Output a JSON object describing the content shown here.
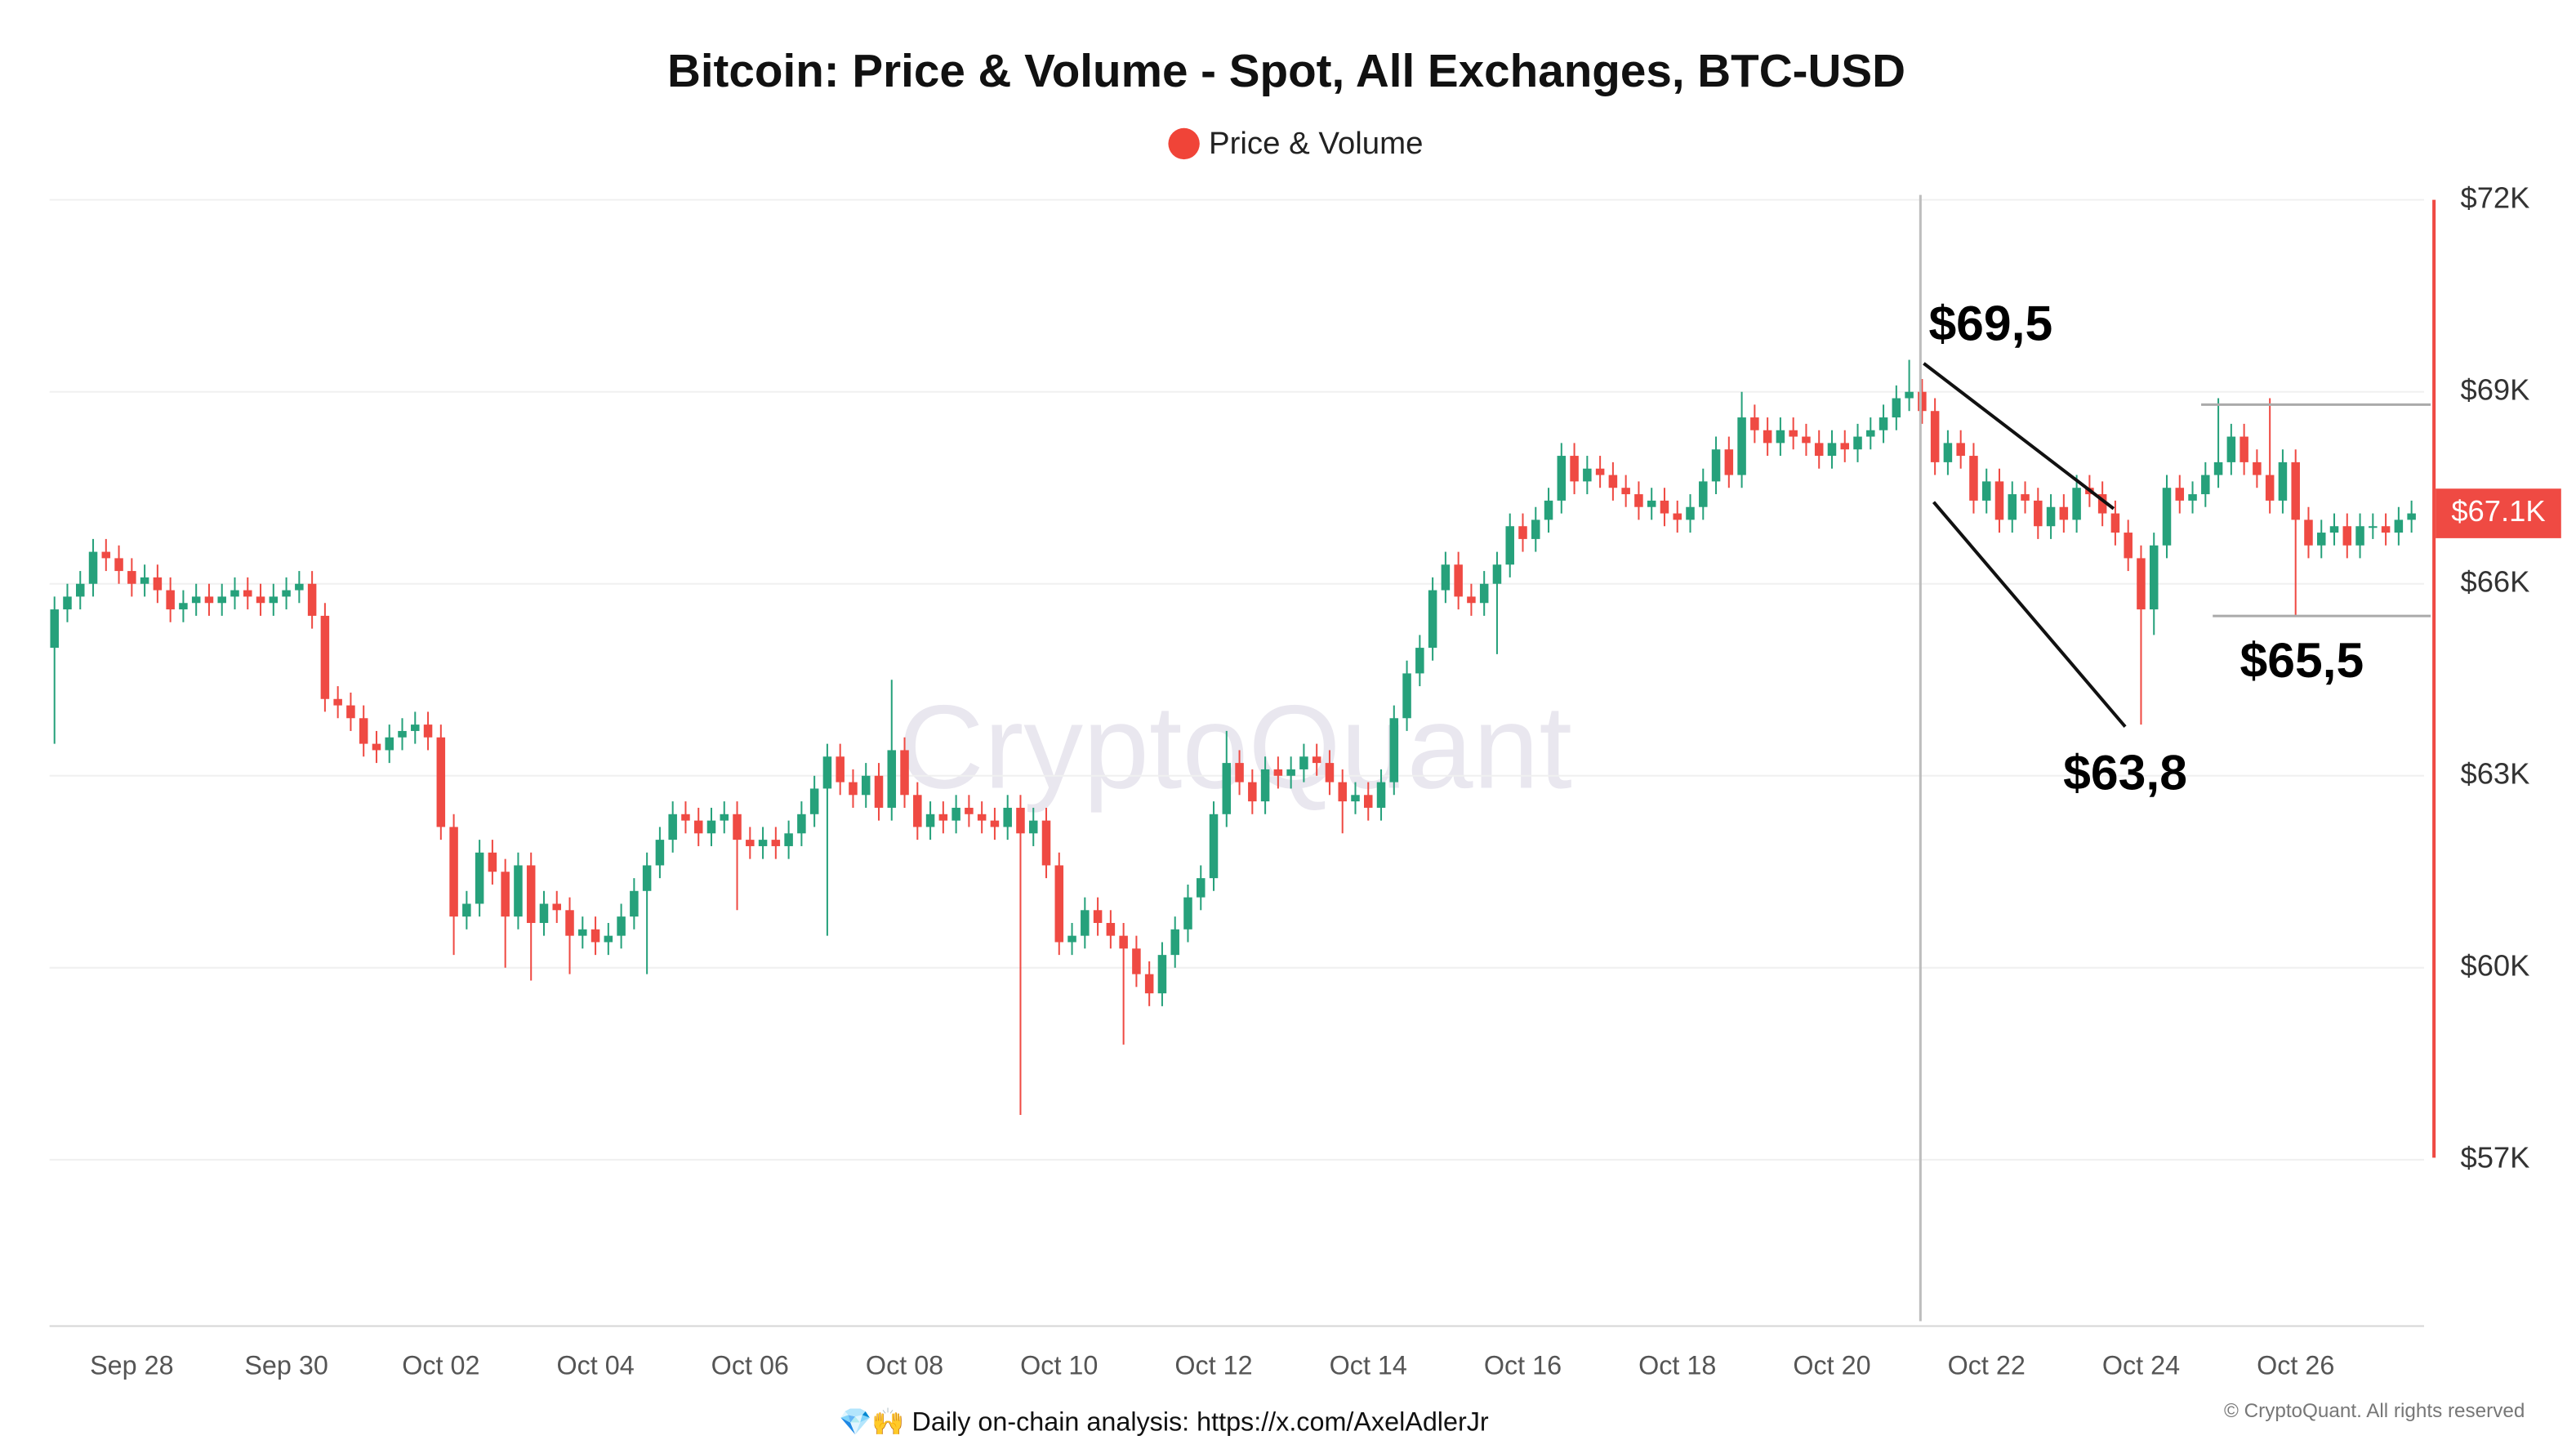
{
  "chart_data": {
    "type": "candlestick",
    "title": "Bitcoin: Price & Volume - Spot, All Exchanges, BTC-USD",
    "legend_position": "top",
    "watermark": "CryptoQuant",
    "footer": "💎🙌 Daily on-chain analysis: https://x.com/AxelAdlerJr",
    "copyright": "© CryptoQuant. All rights reserved",
    "annotations": [
      "$69,5",
      "$63,8",
      "$65,5"
    ],
    "last_price": {
      "value": 67.1,
      "label": "$67.1K"
    },
    "up_color": "#26a17b",
    "down_color": "#ef4a43",
    "grid": true,
    "ylim": [
      54.4,
      72
    ],
    "yticks": [
      {
        "value": 57,
        "label": "$57K"
      },
      {
        "value": 60,
        "label": "$60K"
      },
      {
        "value": 63,
        "label": "$63K"
      },
      {
        "value": 66,
        "label": "$66K"
      },
      {
        "value": 69,
        "label": "$69K"
      },
      {
        "value": 72,
        "label": "$72K"
      }
    ],
    "categories": [
      null,
      null,
      null,
      null,
      null,
      null,
      "Sep 28",
      null,
      null,
      null,
      null,
      null,
      null,
      null,
      null,
      null,
      null,
      null,
      "Sep 30",
      null,
      null,
      null,
      null,
      null,
      null,
      null,
      null,
      null,
      null,
      null,
      "Oct 02",
      null,
      null,
      null,
      null,
      null,
      null,
      null,
      null,
      null,
      null,
      null,
      "Oct 04",
      null,
      null,
      null,
      null,
      null,
      null,
      null,
      null,
      null,
      null,
      null,
      "Oct 06",
      null,
      null,
      null,
      null,
      null,
      null,
      null,
      null,
      null,
      null,
      null,
      "Oct 08",
      null,
      null,
      null,
      null,
      null,
      null,
      null,
      null,
      null,
      null,
      null,
      "Oct 10",
      null,
      null,
      null,
      null,
      null,
      null,
      null,
      null,
      null,
      null,
      null,
      "Oct 12",
      null,
      null,
      null,
      null,
      null,
      null,
      null,
      null,
      null,
      null,
      null,
      "Oct 14",
      null,
      null,
      null,
      null,
      null,
      null,
      null,
      null,
      null,
      null,
      null,
      "Oct 16",
      null,
      null,
      null,
      null,
      null,
      null,
      null,
      null,
      null,
      null,
      null,
      "Oct 18",
      null,
      null,
      null,
      null,
      null,
      null,
      null,
      null,
      null,
      null,
      null,
      "Oct 20",
      null,
      null,
      null,
      null,
      null,
      null,
      null,
      null,
      null,
      null,
      null,
      "Oct 22",
      null,
      null,
      null,
      null,
      null,
      null,
      null,
      null,
      null,
      null,
      null,
      "Oct 24",
      null,
      null,
      null,
      null,
      null,
      null,
      null,
      null,
      null,
      null,
      null,
      "Oct 26",
      null,
      null,
      null,
      null,
      null,
      null,
      null,
      null,
      null
    ],
    "series": [
      {
        "name": "Price & Volume",
        "color": "#f04438",
        "open": [
          65.0,
          65.6,
          65.8,
          66.0,
          66.5,
          66.4,
          66.2,
          66.0,
          66.1,
          65.9,
          65.6,
          65.7,
          65.8,
          65.7,
          65.8,
          65.9,
          65.8,
          65.7,
          65.8,
          65.9,
          66.0,
          65.5,
          64.2,
          64.1,
          63.9,
          63.5,
          63.4,
          63.6,
          63.7,
          63.8,
          63.6,
          62.2,
          60.8,
          61.0,
          61.8,
          61.5,
          60.8,
          61.6,
          60.7,
          61.0,
          60.9,
          60.5,
          60.6,
          60.4,
          60.5,
          60.8,
          61.2,
          61.6,
          62.0,
          62.4,
          62.3,
          62.1,
          62.3,
          62.4,
          62.0,
          61.9,
          62.0,
          61.9,
          62.1,
          62.4,
          62.8,
          63.3,
          62.9,
          62.7,
          63.0,
          62.5,
          63.4,
          62.7,
          62.2,
          62.4,
          62.3,
          62.5,
          62.4,
          62.3,
          62.2,
          62.5,
          62.1,
          62.3,
          61.6,
          60.4,
          60.5,
          60.9,
          60.7,
          60.5,
          60.3,
          59.9,
          59.6,
          60.2,
          60.6,
          61.1,
          61.4,
          62.4,
          63.2,
          62.9,
          62.6,
          63.1,
          63.0,
          63.1,
          63.3,
          63.2,
          62.9,
          62.6,
          62.7,
          62.5,
          62.9,
          63.9,
          64.6,
          65.0,
          65.9,
          66.3,
          65.8,
          65.7,
          66.0,
          66.3,
          66.9,
          66.7,
          67.0,
          67.3,
          68.0,
          67.6,
          67.8,
          67.7,
          67.5,
          67.4,
          67.2,
          67.3,
          67.1,
          67.0,
          67.2,
          67.6,
          68.1,
          67.7,
          68.6,
          68.4,
          68.2,
          68.4,
          68.3,
          68.2,
          68.0,
          68.2,
          68.1,
          68.3,
          68.4,
          68.6,
          68.9,
          69.0,
          68.7,
          67.9,
          68.2,
          68.0,
          67.3,
          67.6,
          67.0,
          67.4,
          67.3,
          66.9,
          67.2,
          67.0,
          67.5,
          67.4,
          67.1,
          66.8,
          66.4,
          65.6,
          66.6,
          67.5,
          67.3,
          67.4,
          67.7,
          67.9,
          68.3,
          67.9,
          67.7,
          67.3,
          67.9,
          67.0,
          66.6,
          66.8,
          66.9,
          66.6,
          66.9,
          66.9,
          66.8,
          67.0
        ],
        "high": [
          65.8,
          66.0,
          66.2,
          66.7,
          66.7,
          66.6,
          66.4,
          66.3,
          66.3,
          66.1,
          65.9,
          66.0,
          66.0,
          66.0,
          66.1,
          66.1,
          66.0,
          66.0,
          66.1,
          66.2,
          66.2,
          65.7,
          64.4,
          64.3,
          64.1,
          63.7,
          63.8,
          63.9,
          64.0,
          64.0,
          63.8,
          62.4,
          61.2,
          62.0,
          62.0,
          61.7,
          61.8,
          61.8,
          61.2,
          61.2,
          61.1,
          60.8,
          60.8,
          60.7,
          61.0,
          61.4,
          61.8,
          62.2,
          62.6,
          62.6,
          62.5,
          62.5,
          62.6,
          62.6,
          62.2,
          62.2,
          62.2,
          62.3,
          62.6,
          63.0,
          63.5,
          63.5,
          63.1,
          63.2,
          63.2,
          64.5,
          63.6,
          62.9,
          62.6,
          62.6,
          62.7,
          62.7,
          62.6,
          62.5,
          62.7,
          62.7,
          62.5,
          62.5,
          61.8,
          60.7,
          61.1,
          61.1,
          60.9,
          60.7,
          60.5,
          60.1,
          60.4,
          60.8,
          61.3,
          61.6,
          62.6,
          63.7,
          63.4,
          63.1,
          63.3,
          63.3,
          63.3,
          63.5,
          63.5,
          63.4,
          63.1,
          62.9,
          62.9,
          63.1,
          64.1,
          64.8,
          65.2,
          66.1,
          66.5,
          66.5,
          66.0,
          66.2,
          66.5,
          67.1,
          67.1,
          67.2,
          67.5,
          68.2,
          68.2,
          68.0,
          68.0,
          67.9,
          67.7,
          67.6,
          67.5,
          67.5,
          67.3,
          67.4,
          67.8,
          68.3,
          68.3,
          69.0,
          68.8,
          68.6,
          68.6,
          68.6,
          68.5,
          68.4,
          68.4,
          68.4,
          68.5,
          68.6,
          68.8,
          69.1,
          69.5,
          69.2,
          68.9,
          68.4,
          68.4,
          68.2,
          67.8,
          67.8,
          67.6,
          67.6,
          67.5,
          67.4,
          67.4,
          67.7,
          67.7,
          67.6,
          67.3,
          67.0,
          66.6,
          66.8,
          67.7,
          67.7,
          67.6,
          67.9,
          68.9,
          68.5,
          68.5,
          68.1,
          68.9,
          68.1,
          68.1,
          67.2,
          67.0,
          67.1,
          67.1,
          67.1,
          67.1,
          67.1,
          67.2,
          67.3
        ],
        "low": [
          63.5,
          65.4,
          65.6,
          65.8,
          66.2,
          66.0,
          65.8,
          65.8,
          65.7,
          65.4,
          65.4,
          65.5,
          65.5,
          65.5,
          65.6,
          65.6,
          65.5,
          65.5,
          65.6,
          65.7,
          65.3,
          64.0,
          63.9,
          63.7,
          63.3,
          63.2,
          63.2,
          63.4,
          63.5,
          63.4,
          62.0,
          60.2,
          60.6,
          60.8,
          61.3,
          60.0,
          60.6,
          59.8,
          60.5,
          60.7,
          59.9,
          60.3,
          60.2,
          60.2,
          60.3,
          60.6,
          59.9,
          61.4,
          61.8,
          62.1,
          61.9,
          61.9,
          62.1,
          60.9,
          61.7,
          61.7,
          61.7,
          61.7,
          61.9,
          62.2,
          60.5,
          62.7,
          62.5,
          62.5,
          62.3,
          62.3,
          62.5,
          62.0,
          62.0,
          62.1,
          62.1,
          62.2,
          62.1,
          62.0,
          62.0,
          57.7,
          61.9,
          61.4,
          60.2,
          60.2,
          60.3,
          60.5,
          60.3,
          58.8,
          59.7,
          59.4,
          59.4,
          60.0,
          60.4,
          60.9,
          61.2,
          62.2,
          62.7,
          62.4,
          62.4,
          62.8,
          62.8,
          62.9,
          63.0,
          62.7,
          62.1,
          62.4,
          62.3,
          62.3,
          62.7,
          63.7,
          64.4,
          64.8,
          65.7,
          65.6,
          65.5,
          65.5,
          64.9,
          66.1,
          66.5,
          66.5,
          66.8,
          67.1,
          67.4,
          67.4,
          67.5,
          67.3,
          67.2,
          67.0,
          67.0,
          66.9,
          66.8,
          66.8,
          67.0,
          67.4,
          67.5,
          67.5,
          68.2,
          68.0,
          68.0,
          68.1,
          68.0,
          67.8,
          67.8,
          67.9,
          67.9,
          68.1,
          68.2,
          68.4,
          68.7,
          68.5,
          67.7,
          67.7,
          67.8,
          67.1,
          67.1,
          66.8,
          66.8,
          67.1,
          66.7,
          66.7,
          66.8,
          66.8,
          67.2,
          66.9,
          66.6,
          66.2,
          63.8,
          65.2,
          66.4,
          67.1,
          67.1,
          67.2,
          67.5,
          67.7,
          67.7,
          67.5,
          67.1,
          67.1,
          65.5,
          66.4,
          66.4,
          66.6,
          66.4,
          66.4,
          66.7,
          66.6,
          66.6,
          66.8
        ],
        "close": [
          65.6,
          65.8,
          66.0,
          66.5,
          66.4,
          66.2,
          66.0,
          66.1,
          65.9,
          65.6,
          65.7,
          65.8,
          65.7,
          65.8,
          65.9,
          65.8,
          65.7,
          65.8,
          65.9,
          66.0,
          65.5,
          64.2,
          64.1,
          63.9,
          63.5,
          63.4,
          63.6,
          63.7,
          63.8,
          63.6,
          62.2,
          60.8,
          61.0,
          61.8,
          61.5,
          60.8,
          61.6,
          60.7,
          61.0,
          60.9,
          60.5,
          60.6,
          60.4,
          60.5,
          60.8,
          61.2,
          61.6,
          62.0,
          62.4,
          62.3,
          62.1,
          62.3,
          62.4,
          62.0,
          61.9,
          62.0,
          61.9,
          62.1,
          62.4,
          62.8,
          63.3,
          62.9,
          62.7,
          63.0,
          62.5,
          63.4,
          62.7,
          62.2,
          62.4,
          62.3,
          62.5,
          62.4,
          62.3,
          62.2,
          62.5,
          62.1,
          62.3,
          61.6,
          60.4,
          60.5,
          60.9,
          60.7,
          60.5,
          60.3,
          59.9,
          59.6,
          60.2,
          60.6,
          61.1,
          61.4,
          62.4,
          63.2,
          62.9,
          62.6,
          63.1,
          63.0,
          63.1,
          63.3,
          63.2,
          62.9,
          62.6,
          62.7,
          62.5,
          62.9,
          63.9,
          64.6,
          65.0,
          65.9,
          66.3,
          65.8,
          65.7,
          66.0,
          66.3,
          66.9,
          66.7,
          67.0,
          67.3,
          68.0,
          67.6,
          67.8,
          67.7,
          67.5,
          67.4,
          67.2,
          67.3,
          67.1,
          67.0,
          67.2,
          67.6,
          68.1,
          67.7,
          68.6,
          68.4,
          68.2,
          68.4,
          68.3,
          68.2,
          68.0,
          68.2,
          68.1,
          68.3,
          68.4,
          68.6,
          68.9,
          69.0,
          68.7,
          67.9,
          68.2,
          68.0,
          67.3,
          67.6,
          67.0,
          67.4,
          67.3,
          66.9,
          67.2,
          67.0,
          67.5,
          67.4,
          67.1,
          66.8,
          66.4,
          65.6,
          66.6,
          67.5,
          67.3,
          67.4,
          67.7,
          67.9,
          68.3,
          67.9,
          67.7,
          67.3,
          67.9,
          67.0,
          66.6,
          66.8,
          66.9,
          66.6,
          66.9,
          66.9,
          66.8,
          67.0,
          67.1
        ]
      }
    ]
  }
}
